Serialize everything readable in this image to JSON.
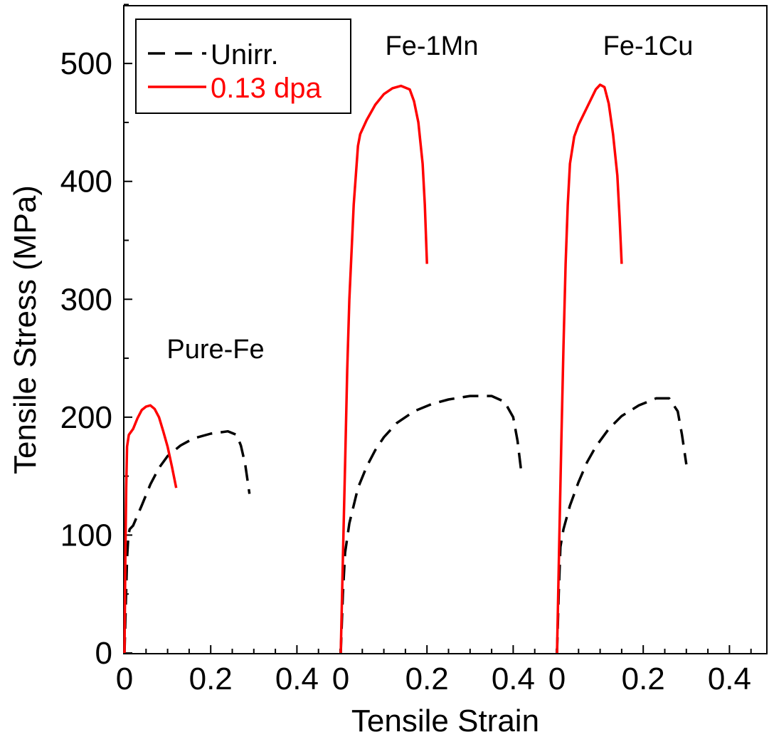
{
  "chart_data": {
    "type": "line",
    "xlabel": "Tensile Strain",
    "ylabel": "Tensile Stress (MPa)",
    "ylim": [
      0,
      550
    ],
    "yticks": [
      "0",
      "100",
      "200",
      "300",
      "400",
      "500"
    ],
    "xticks": [
      "0",
      "0.2",
      "0.4"
    ],
    "legend": {
      "placement": "top-left",
      "entries": [
        {
          "label": "Unirr.",
          "color": "#000000",
          "style": "dashed"
        },
        {
          "label": "0.13 dpa",
          "color": "#ff0000",
          "style": "solid"
        }
      ]
    },
    "panels": [
      {
        "label": "Pure-Fe",
        "xlim": [
          0,
          0.5
        ],
        "series": [
          {
            "name": "Unirr.",
            "color": "#000000",
            "style": "dashed",
            "x": [
              0,
              0.003,
              0.006,
              0.009,
              0.012,
              0.02,
              0.04,
              0.06,
              0.08,
              0.1,
              0.13,
              0.16,
              0.2,
              0.24,
              0.26,
              0.27,
              0.28,
              0.29
            ],
            "y": [
              0,
              40,
              80,
              100,
              105,
              108,
              125,
              143,
              157,
              167,
              176,
              182,
              186,
              188,
              185,
              176,
              160,
              135
            ]
          },
          {
            "name": "0.13 dpa",
            "color": "#ff0000",
            "style": "solid",
            "x": [
              0,
              0.002,
              0.004,
              0.006,
              0.01,
              0.02,
              0.03,
              0.04,
              0.05,
              0.06,
              0.07,
              0.08,
              0.09,
              0.1,
              0.11,
              0.12
            ],
            "y": [
              0,
              80,
              140,
              175,
              185,
              190,
              199,
              206,
              209,
              210,
              207,
              200,
              188,
              175,
              158,
              140
            ]
          }
        ]
      },
      {
        "label": "Fe-1Mn",
        "xlim": [
          0,
          0.5
        ],
        "series": [
          {
            "name": "Unirr.",
            "color": "#000000",
            "style": "dashed",
            "x": [
              0,
              0.005,
              0.01,
              0.02,
              0.04,
              0.06,
              0.08,
              0.1,
              0.13,
              0.17,
              0.21,
              0.25,
              0.3,
              0.35,
              0.38,
              0.4,
              0.41,
              0.42
            ],
            "y": [
              0,
              50,
              85,
              110,
              140,
              158,
              172,
              183,
              195,
              205,
              211,
              215,
              218,
              218,
              213,
              200,
              180,
              150
            ]
          },
          {
            "name": "0.13 dpa",
            "color": "#ff0000",
            "style": "solid",
            "x": [
              0,
              0.005,
              0.01,
              0.015,
              0.02,
              0.03,
              0.04,
              0.045,
              0.06,
              0.08,
              0.1,
              0.12,
              0.14,
              0.16,
              0.17,
              0.18,
              0.19,
              0.195,
              0.2
            ],
            "y": [
              0,
              80,
              160,
              240,
              300,
              380,
              430,
              440,
              452,
              465,
              474,
              479,
              481,
              478,
              468,
              450,
              415,
              380,
              330
            ]
          }
        ]
      },
      {
        "label": "Fe-1Cu",
        "xlim": [
          0,
          0.5
        ],
        "series": [
          {
            "name": "Unirr.",
            "color": "#000000",
            "style": "dashed",
            "x": [
              0,
              0.004,
              0.008,
              0.015,
              0.03,
              0.05,
              0.07,
              0.09,
              0.12,
              0.15,
              0.19,
              0.23,
              0.26,
              0.28,
              0.29,
              0.3
            ],
            "y": [
              0,
              50,
              90,
              105,
              125,
              145,
              162,
              175,
              190,
              201,
              210,
              216,
              216,
              205,
              185,
              160
            ]
          },
          {
            "name": "0.13 dpa",
            "color": "#ff0000",
            "style": "solid",
            "x": [
              0,
              0.005,
              0.01,
              0.015,
              0.02,
              0.025,
              0.03,
              0.04,
              0.05,
              0.07,
              0.09,
              0.1,
              0.11,
              0.12,
              0.13,
              0.14,
              0.145,
              0.15
            ],
            "y": [
              0,
              90,
              180,
              260,
              330,
              380,
              415,
              438,
              448,
              463,
              478,
              482,
              480,
              466,
              440,
              405,
              370,
              330
            ]
          }
        ]
      }
    ]
  }
}
